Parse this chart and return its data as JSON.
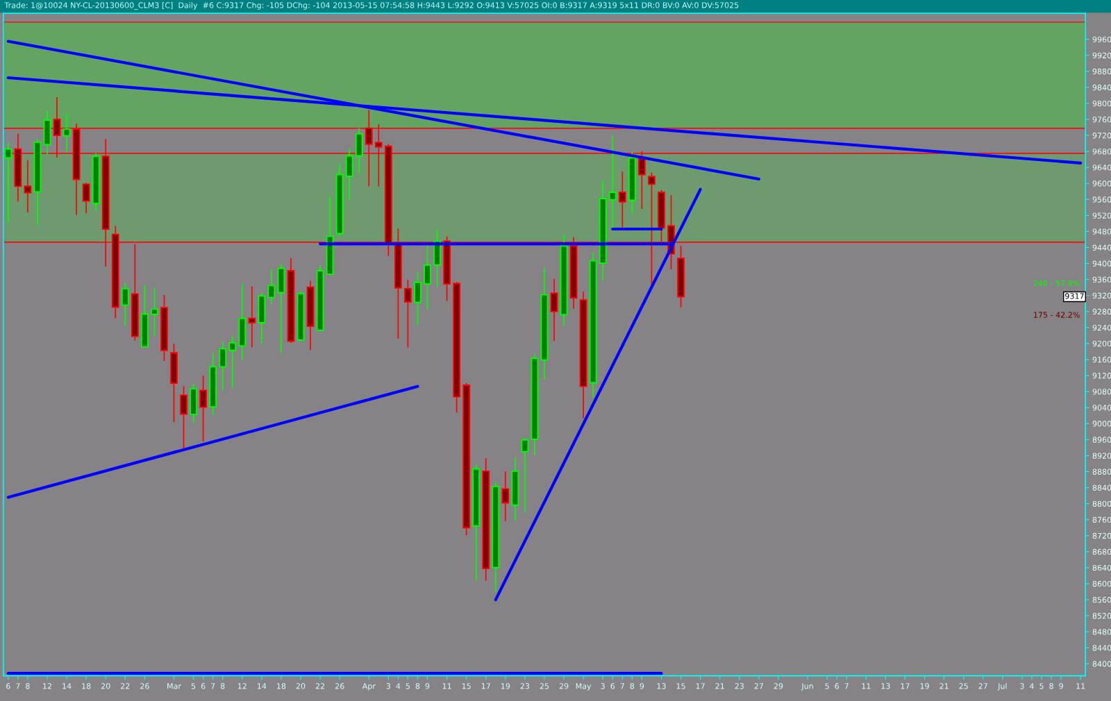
{
  "chart_data": {
    "type": "candlestick",
    "title": "Trade: 1@10024 NY-CL-20130600_CLM3 [C]  Daily  #6 C:9317 Chg: -105 DChg: -104 2013-05-15 07:54:58 H:9443 L:9292 O:9413 V:57025 OI:0 B:9317 A:9319 5x11 DR:0 BV:0 AV:0 DV:57025",
    "categories": [
      "6",
      "7",
      "8",
      null,
      "12",
      null,
      "14",
      null,
      "18",
      null,
      "20",
      null,
      "22",
      null,
      "26",
      null,
      null,
      "Mar",
      null,
      "5",
      "6",
      "7",
      "8",
      null,
      "12",
      null,
      "14",
      null,
      "18",
      null,
      "20",
      null,
      "22",
      null,
      "26",
      null,
      null,
      "Apr",
      null,
      "3",
      "4",
      "5",
      "8",
      "9",
      null,
      "11",
      null,
      "15",
      null,
      "17",
      null,
      "19",
      null,
      "23",
      null,
      "25",
      null,
      "29",
      null,
      "May",
      null,
      "3",
      "6",
      "7",
      "8",
      "9",
      null,
      "13",
      null,
      "15",
      null,
      "17",
      null,
      "21",
      null,
      "23",
      null,
      "27",
      null,
      "29",
      null,
      null,
      "Jun",
      null,
      "5",
      "6",
      "7",
      null,
      "11",
      null,
      "13",
      null,
      "17",
      null,
      "19",
      null,
      "21",
      null,
      "25",
      null,
      "27",
      null,
      "Jul",
      null,
      "3",
      "4",
      "5",
      "8",
      "9",
      null,
      "11"
    ],
    "ohlc": [
      [
        9664,
        9701,
        9504,
        9686
      ],
      [
        9686,
        9722,
        9556,
        9593
      ],
      [
        9593,
        9657,
        9529,
        9577
      ],
      [
        9579,
        9710,
        9499,
        9703
      ],
      [
        9697,
        9780,
        9671,
        9758
      ],
      [
        9760,
        9814,
        9666,
        9720
      ],
      [
        9719,
        9772,
        9679,
        9736
      ],
      [
        9735,
        9748,
        9522,
        9610
      ],
      [
        9598,
        9601,
        9527,
        9556
      ],
      [
        9550,
        9674,
        9534,
        9668
      ],
      [
        9668,
        9709,
        9394,
        9486
      ],
      [
        9473,
        9492,
        9265,
        9291
      ],
      [
        9296,
        9349,
        9246,
        9337
      ],
      [
        9324,
        9447,
        9209,
        9218
      ],
      [
        9192,
        9344,
        9192,
        9274
      ],
      [
        9273,
        9337,
        9220,
        9286
      ],
      [
        9290,
        9320,
        9158,
        9183
      ],
      [
        9177,
        9198,
        9005,
        9101
      ],
      [
        9071,
        9092,
        8938,
        9024
      ],
      [
        9023,
        9098,
        9003,
        9087
      ],
      [
        9083,
        9118,
        8957,
        9041
      ],
      [
        9042,
        9175,
        9023,
        9142
      ],
      [
        9142,
        9203,
        9085,
        9187
      ],
      [
        9183,
        9217,
        9091,
        9202
      ],
      [
        9194,
        9348,
        9161,
        9263
      ],
      [
        9263,
        9341,
        9192,
        9252
      ],
      [
        9252,
        9325,
        9202,
        9319
      ],
      [
        9315,
        9385,
        9300,
        9345
      ],
      [
        9327,
        9396,
        9178,
        9388
      ],
      [
        9382,
        9412,
        9203,
        9206
      ],
      [
        9209,
        9328,
        9209,
        9325
      ],
      [
        9341,
        9355,
        9185,
        9243
      ],
      [
        9233,
        9395,
        9233,
        9382
      ],
      [
        9373,
        9566,
        9373,
        9468
      ],
      [
        9475,
        9646,
        9470,
        9622
      ],
      [
        9618,
        9686,
        9560,
        9669
      ],
      [
        9669,
        9737,
        9628,
        9724
      ],
      [
        9738,
        9782,
        9594,
        9698
      ],
      [
        9702,
        9746,
        9594,
        9691
      ],
      [
        9693,
        9697,
        9420,
        9450
      ],
      [
        9450,
        9486,
        9214,
        9339
      ],
      [
        9337,
        9358,
        9192,
        9304
      ],
      [
        9303,
        9377,
        9248,
        9353
      ],
      [
        9349,
        9446,
        9287,
        9396
      ],
      [
        9396,
        9483,
        9342,
        9456
      ],
      [
        9456,
        9466,
        9308,
        9349
      ],
      [
        9350,
        9353,
        9029,
        9067
      ],
      [
        9096,
        9100,
        8723,
        8740
      ],
      [
        8744,
        8897,
        8609,
        8887
      ],
      [
        8881,
        8912,
        8609,
        8638
      ],
      [
        8640,
        8853,
        8580,
        8843
      ],
      [
        8837,
        8879,
        8758,
        8802
      ],
      [
        8796,
        8915,
        8758,
        8881
      ],
      [
        8930,
        8963,
        8782,
        8959
      ],
      [
        8961,
        9172,
        8922,
        9163
      ],
      [
        9159,
        9388,
        9112,
        9322
      ],
      [
        9326,
        9360,
        9208,
        9280
      ],
      [
        9272,
        9470,
        9246,
        9444
      ],
      [
        9444,
        9464,
        9288,
        9314
      ],
      [
        9309,
        9328,
        9014,
        9093
      ],
      [
        9102,
        9426,
        9067,
        9407
      ],
      [
        9401,
        9605,
        9358,
        9562
      ],
      [
        9559,
        9719,
        9487,
        9578
      ],
      [
        9578,
        9628,
        9492,
        9554
      ],
      [
        9558,
        9677,
        9527,
        9664
      ],
      [
        9662,
        9679,
        9538,
        9622
      ],
      [
        9617,
        9626,
        9347,
        9598
      ],
      [
        9578,
        9582,
        9453,
        9489
      ],
      [
        9494,
        9569,
        9387,
        9424
      ],
      [
        9413,
        9443,
        9292,
        9317
      ],
      null,
      null,
      null,
      null,
      null,
      null,
      null,
      null,
      null,
      null,
      null,
      null,
      null,
      null,
      null,
      null,
      null,
      null,
      null,
      null,
      null,
      null,
      null,
      null,
      null,
      null,
      null,
      null,
      null,
      null,
      null,
      null,
      null,
      null,
      null,
      null,
      null,
      null,
      null,
      null,
      null
    ],
    "series": [
      {
        "type": "line",
        "color": "#0000ff",
        "values": [
          9955,
          null,
          null,
          null,
          null,
          null,
          null,
          null,
          null,
          null,
          null,
          null,
          null,
          null,
          null,
          null,
          null,
          null,
          null,
          null,
          null,
          null,
          null,
          null,
          null,
          null,
          null,
          null,
          null,
          null,
          null,
          null,
          null,
          null,
          null,
          null,
          null,
          null,
          null,
          null,
          null,
          null,
          null,
          null,
          null,
          null,
          null,
          null,
          null,
          null,
          null,
          null,
          null,
          null,
          null,
          null,
          null,
          null,
          null,
          null,
          null,
          null,
          null,
          null,
          null,
          null,
          null,
          null,
          null,
          null,
          null,
          null,
          null,
          null,
          null,
          null,
          null,
          9611,
          null,
          null,
          null,
          null,
          null,
          null,
          null,
          null,
          null,
          null,
          null,
          null,
          null,
          null,
          null,
          null,
          null,
          null,
          null,
          null,
          null,
          null,
          null,
          null,
          null,
          null,
          null,
          null,
          null,
          null,
          null,
          null,
          null
        ]
      },
      {
        "type": "line",
        "color": "#0000ff",
        "values": [
          9864,
          null,
          null,
          null,
          null,
          null,
          null,
          null,
          null,
          null,
          null,
          null,
          null,
          null,
          null,
          null,
          null,
          null,
          null,
          null,
          null,
          null,
          null,
          null,
          null,
          null,
          null,
          null,
          null,
          null,
          null,
          null,
          null,
          null,
          null,
          null,
          null,
          null,
          null,
          null,
          null,
          null,
          null,
          null,
          null,
          null,
          null,
          null,
          null,
          null,
          null,
          null,
          null,
          null,
          null,
          null,
          null,
          null,
          null,
          null,
          null,
          null,
          null,
          null,
          null,
          null,
          null,
          null,
          null,
          null,
          null,
          null,
          null,
          null,
          null,
          null,
          null,
          null,
          null,
          null,
          null,
          null,
          null,
          null,
          null,
          null,
          null,
          null,
          null,
          null,
          null,
          null,
          null,
          null,
          null,
          null,
          null,
          null,
          null,
          null,
          null,
          null,
          null,
          null,
          null,
          null,
          null,
          null,
          null,
          null,
          9651
        ]
      },
      {
        "type": "line",
        "color": "#0000ff",
        "values": [
          8816,
          null,
          null,
          null,
          null,
          null,
          null,
          null,
          null,
          null,
          null,
          null,
          null,
          null,
          null,
          null,
          null,
          null,
          null,
          null,
          null,
          null,
          null,
          null,
          null,
          null,
          null,
          null,
          null,
          null,
          null,
          null,
          null,
          null,
          null,
          null,
          null,
          null,
          null,
          null,
          null,
          null,
          9093,
          null,
          null,
          null,
          null,
          null,
          null,
          null,
          null,
          null,
          null,
          null,
          null,
          null,
          null,
          null,
          null,
          null,
          null,
          null,
          null,
          null,
          null,
          null,
          null,
          null,
          null,
          null,
          null,
          null,
          null,
          null,
          null,
          null,
          null,
          null,
          null,
          null,
          null,
          null,
          null,
          null,
          null,
          null,
          null,
          null,
          null,
          null,
          null,
          null,
          null,
          null,
          null,
          null,
          null,
          null,
          null,
          null,
          null,
          null,
          null,
          null,
          null,
          null,
          null,
          null,
          null,
          null,
          null
        ]
      },
      {
        "type": "line",
        "color": "#0000ff",
        "values": [
          null,
          null,
          null,
          null,
          null,
          null,
          null,
          null,
          null,
          null,
          null,
          null,
          null,
          null,
          null,
          null,
          null,
          null,
          null,
          null,
          null,
          null,
          null,
          null,
          null,
          null,
          null,
          null,
          null,
          null,
          null,
          null,
          null,
          null,
          null,
          null,
          null,
          null,
          null,
          null,
          null,
          null,
          null,
          null,
          null,
          null,
          null,
          null,
          null,
          null,
          8560,
          null,
          null,
          null,
          null,
          null,
          null,
          null,
          null,
          null,
          null,
          null,
          null,
          null,
          null,
          null,
          null,
          null,
          null,
          null,
          null,
          9585,
          null,
          null,
          null,
          null,
          null,
          null,
          null,
          null,
          null,
          null,
          null,
          null,
          null,
          null,
          null,
          null,
          null,
          null,
          null,
          null,
          null,
          null,
          null,
          null,
          null,
          null,
          null,
          null,
          null,
          null,
          null,
          null,
          null,
          null,
          null,
          null,
          null,
          null,
          null
        ]
      },
      {
        "type": "line",
        "color": "#0000ff",
        "values": [
          null,
          null,
          null,
          null,
          null,
          null,
          null,
          null,
          null,
          null,
          null,
          null,
          null,
          null,
          null,
          null,
          null,
          null,
          null,
          null,
          null,
          null,
          null,
          null,
          null,
          null,
          null,
          null,
          null,
          null,
          null,
          null,
          9449,
          null,
          null,
          null,
          null,
          null,
          null,
          null,
          null,
          null,
          null,
          null,
          null,
          null,
          null,
          null,
          null,
          null,
          null,
          null,
          null,
          null,
          null,
          null,
          null,
          null,
          null,
          null,
          null,
          null,
          null,
          null,
          null,
          null,
          null,
          null,
          9449,
          null,
          null,
          null,
          null,
          null,
          null,
          null,
          null,
          null,
          null,
          null,
          null,
          null,
          null,
          null,
          null,
          null,
          null,
          null,
          null,
          null,
          null,
          null,
          null,
          null,
          null,
          null,
          null,
          null,
          null,
          null,
          null,
          null,
          null,
          null,
          null,
          null,
          null,
          null,
          null,
          null,
          null
        ]
      },
      {
        "type": "line",
        "color": "#0000ff",
        "values": [
          null,
          null,
          null,
          null,
          null,
          null,
          null,
          null,
          null,
          null,
          null,
          null,
          null,
          null,
          null,
          null,
          null,
          null,
          null,
          null,
          null,
          null,
          null,
          null,
          null,
          null,
          null,
          null,
          null,
          null,
          null,
          null,
          null,
          null,
          null,
          null,
          null,
          null,
          null,
          null,
          null,
          null,
          null,
          null,
          null,
          null,
          null,
          null,
          null,
          null,
          null,
          null,
          null,
          null,
          null,
          null,
          null,
          null,
          null,
          null,
          null,
          null,
          9486,
          null,
          null,
          null,
          null,
          9486,
          null,
          null,
          null,
          null,
          null,
          null,
          null,
          null,
          null,
          null,
          null,
          null,
          null,
          null,
          null,
          null,
          null,
          null,
          null,
          null,
          null,
          null,
          null,
          null,
          null,
          null,
          null,
          null,
          null,
          null,
          null,
          null,
          null,
          null,
          null,
          null,
          null,
          null,
          null,
          null,
          null,
          null,
          null
        ]
      },
      {
        "type": "line",
        "color": "#0000ff",
        "values": [
          8376,
          null,
          null,
          null,
          null,
          null,
          null,
          null,
          null,
          null,
          null,
          null,
          null,
          null,
          null,
          null,
          null,
          null,
          null,
          null,
          null,
          null,
          null,
          null,
          null,
          null,
          null,
          null,
          null,
          null,
          null,
          null,
          null,
          null,
          null,
          null,
          null,
          null,
          null,
          null,
          null,
          null,
          null,
          null,
          null,
          null,
          null,
          null,
          null,
          null,
          null,
          null,
          null,
          null,
          null,
          null,
          null,
          null,
          null,
          null,
          null,
          null,
          null,
          null,
          null,
          null,
          null,
          8376,
          null,
          null,
          null,
          null,
          null,
          null,
          null,
          null,
          null,
          null,
          null,
          null,
          null,
          null,
          null,
          null,
          null,
          null,
          null,
          null,
          null,
          null,
          null,
          null,
          null,
          null,
          null,
          null,
          null,
          null,
          null,
          null,
          null,
          null,
          null,
          null,
          null,
          null,
          null,
          null,
          null,
          null,
          null
        ]
      }
    ],
    "bands": [
      {
        "axis": "y",
        "from": 9738,
        "to": 10003,
        "color": "#63a463"
      },
      {
        "axis": "y",
        "from": 9453,
        "to": 9675,
        "color": "#6f9a6f"
      }
    ],
    "ylim": [
      8370,
      10025
    ],
    "yticks": [
      8400,
      8440,
      8480,
      8520,
      8560,
      8600,
      8640,
      8680,
      8720,
      8760,
      8800,
      8840,
      8880,
      8920,
      8960,
      9000,
      9040,
      9080,
      9120,
      9160,
      9200,
      9240,
      9280,
      9320,
      9360,
      9400,
      9440,
      9480,
      9520,
      9560,
      9600,
      9640,
      9680,
      9720,
      9760,
      9800,
      9840,
      9880,
      9920,
      9960
    ],
    "annotations": [
      "240 - 57.8%",
      "175 - 42.2%",
      {
        "text": "9317",
        "y": 9317
      }
    ]
  }
}
